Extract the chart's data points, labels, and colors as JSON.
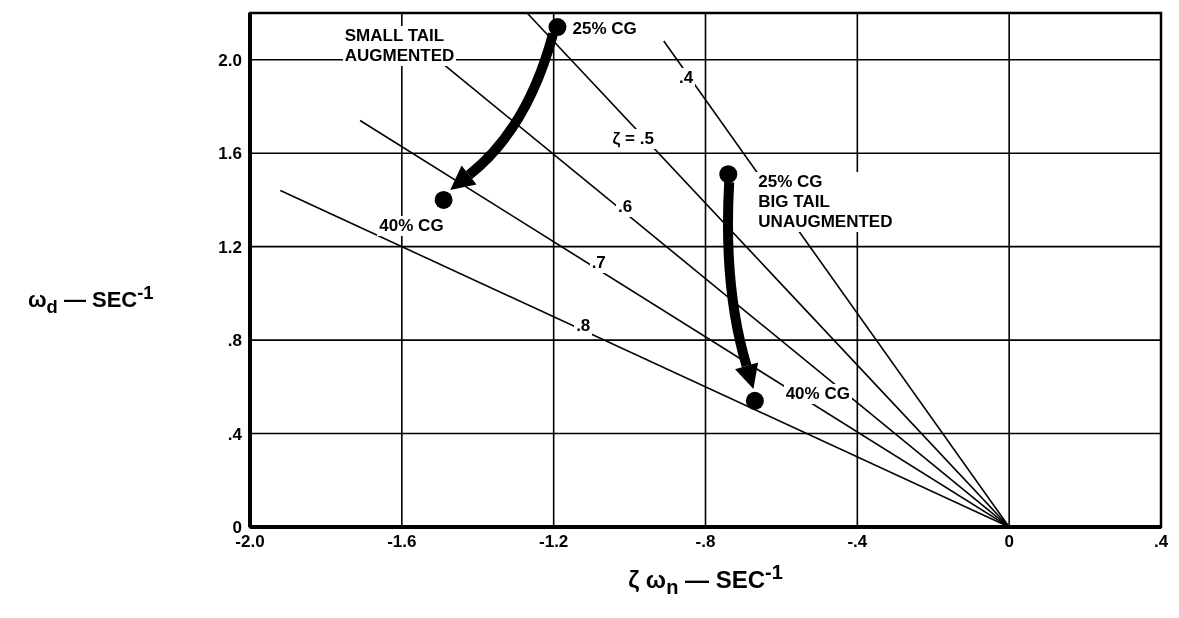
{
  "chart_data": {
    "type": "scatter",
    "xlabel": "ζ ω$_{n}$ — SEC$^{-1}$",
    "ylabel": "ω$_{d}$ — SEC$^{-1}$",
    "xlim": [
      -2.0,
      0.4
    ],
    "xticks": [
      {
        "value": -2.0,
        "label": "-2.0"
      },
      {
        "value": -1.6,
        "label": "-1.6"
      },
      {
        "value": -1.2,
        "label": "-1.2"
      },
      {
        "value": -0.8,
        "label": "-.8"
      },
      {
        "value": -0.4,
        "label": "-.4"
      },
      0,
      {
        "value": 0.4,
        "label": ".4"
      }
    ],
    "ylim": [
      0,
      2.2
    ],
    "yticks": [
      0,
      {
        "value": 0.4,
        "label": ".4"
      },
      {
        "value": 0.8,
        "label": ".8"
      },
      {
        "value": 1.2,
        "label": "1.2"
      },
      {
        "value": 1.6,
        "label": "1.6"
      },
      {
        "value": 2.0,
        "label": "2.0"
      }
    ],
    "grid": true,
    "marker": "circle",
    "series": [
      {
        "type": "line",
        "color": "#000000",
        "marker": "none",
        "x": [
          -0.91,
          0
        ],
        "values": [
          2.08,
          0
        ]
      },
      {
        "type": "line",
        "color": "#000000",
        "marker": "none",
        "x": [
          -1.27,
          0
        ],
        "values": [
          2.2,
          0
        ]
      },
      {
        "type": "line",
        "color": "#000000",
        "marker": "none",
        "x": [
          -1.49,
          0
        ],
        "values": [
          1.98,
          0
        ]
      },
      {
        "type": "line",
        "color": "#000000",
        "marker": "none",
        "x": [
          -1.71,
          0
        ],
        "values": [
          1.74,
          0
        ]
      },
      {
        "type": "line",
        "color": "#000000",
        "marker": "none",
        "x": [
          -1.92,
          0
        ],
        "values": [
          1.44,
          0
        ]
      },
      {
        "type": "scatter",
        "color": "#000000",
        "x": [
          -1.19,
          -1.49
        ],
        "values": [
          2.14,
          1.4
        ]
      },
      {
        "type": "scatter",
        "color": "#000000",
        "x": [
          -0.74,
          -0.67
        ],
        "values": [
          1.51,
          0.54
        ]
      }
    ],
    "annotations": [
      "SMALL TAIL\nAUGMENTED",
      "25% CG",
      "40% CG",
      "25% CG\nBIG TAIL\nUNAUGMENTED",
      "40% CG",
      ".4",
      "ζ = .5",
      ".6",
      ".7",
      ".8"
    ]
  }
}
